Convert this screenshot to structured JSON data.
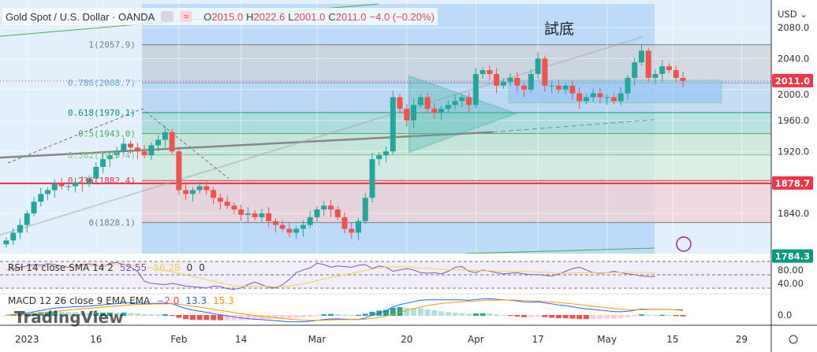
{
  "legend": {
    "symbol": "Gold Spot / U.S. Dollar · OANDA",
    "o_label": "O",
    "o": "2015.0",
    "h_label": "H",
    "h": "2022.6",
    "l_label": "L",
    "l": "2001.0",
    "c_label": "C",
    "c": "2011.0",
    "change": "−4.0 (−0.20%)"
  },
  "annotation": "試底",
  "fib_levels": [
    {
      "label": "1(2057.9)",
      "price": 2057.9,
      "color": "#787b86"
    },
    {
      "label": "0.786(2008.7)",
      "price": 2008.7,
      "color": "#64a6e0"
    },
    {
      "label": "0.618(1970.1)",
      "price": 1970.1,
      "color": "#089981"
    },
    {
      "label": "0.5(1943.0)",
      "price": 1943.0,
      "color": "#4caf50"
    },
    {
      "label": "0.382(1915.4)",
      "price": 1915.4,
      "color": "#81c784"
    },
    {
      "label": "0.236(1882.4)",
      "price": 1882.4,
      "color": "#f23645"
    },
    {
      "label": "0(1828.1)",
      "price": 1828.1,
      "color": "#787b86"
    }
  ],
  "price_axis": {
    "currency": "USD ⌄",
    "ticks": [
      "2080.0",
      "2040.0",
      "2000.0",
      "1960.0",
      "1920.0",
      "1840.0"
    ],
    "tick_values": [
      2080,
      2040,
      2000,
      1960,
      1920,
      1840
    ],
    "tags": [
      {
        "text": "2011.0",
        "price": 2011.0,
        "color": "#f23645"
      },
      {
        "text": "1878.7",
        "price": 1878.7,
        "color": "#f23645"
      },
      {
        "text": "1784.3",
        "price": 1784.3,
        "color": "#089981"
      }
    ]
  },
  "rsi": {
    "label": "RSI 14 close SMA 14 2",
    "value": "52.55",
    "sma": "56.28",
    "x1": "0",
    "x2": "0",
    "axis": [
      "80.00",
      "40.00"
    ],
    "values": [
      62,
      64,
      66,
      68,
      70,
      69,
      71,
      70,
      68,
      66,
      68,
      70,
      71,
      69,
      67,
      72,
      73,
      70,
      66,
      60,
      45,
      42,
      41,
      40,
      42,
      40,
      38,
      37,
      36,
      35,
      38,
      37,
      34,
      33,
      35,
      40,
      44,
      40,
      36,
      35,
      40,
      48,
      58,
      62,
      65,
      72,
      70,
      66,
      68,
      67,
      66,
      69,
      70,
      64,
      68,
      66,
      60,
      62,
      64,
      62,
      58,
      57,
      58,
      56,
      60,
      66,
      67,
      60,
      58,
      62,
      60,
      58,
      56,
      57,
      58,
      56,
      55,
      55,
      54,
      53,
      56,
      60,
      64,
      66,
      62,
      58,
      57,
      58,
      60,
      58,
      56,
      55,
      53,
      52,
      52
    ]
  },
  "macd": {
    "label": "MACD 12 26 close 9 EMA EMA",
    "macd": "−2.0",
    "signal": "13.3",
    "hist": "15.3",
    "axis": [
      "0.0"
    ]
  },
  "time_axis": [
    {
      "t": "2023",
      "i": 3
    },
    {
      "t": "16",
      "i": 13
    },
    {
      "t": "Feb",
      "i": 25
    },
    {
      "t": "14",
      "i": 34
    },
    {
      "t": "Mar",
      "i": 45
    },
    {
      "t": "20",
      "i": 58
    },
    {
      "t": "Apr",
      "i": 68
    },
    {
      "t": "17",
      "i": 77
    },
    {
      "t": "May",
      "i": 87
    },
    {
      "t": "15",
      "i": 96.5
    },
    {
      "t": "29",
      "i": 106.5
    }
  ],
  "branding": "TradingView",
  "chart_data": {
    "type": "candlestick",
    "title": "Gold Spot / U.S. Dollar · OANDA",
    "ylim": [
      1770,
      2095
    ],
    "first_open": 1800,
    "closes": [
      1805,
      1815,
      1825,
      1840,
      1855,
      1865,
      1870,
      1878,
      1875,
      1875,
      1880,
      1878,
      1885,
      1900,
      1910,
      1915,
      1920,
      1930,
      1925,
      1920,
      1915,
      1928,
      1935,
      1945,
      1920,
      1870,
      1865,
      1870,
      1875,
      1870,
      1860,
      1855,
      1850,
      1845,
      1838,
      1840,
      1835,
      1840,
      1830,
      1825,
      1820,
      1815,
      1820,
      1825,
      1835,
      1845,
      1850,
      1845,
      1835,
      1820,
      1815,
      1830,
      1860,
      1910,
      1915,
      1920,
      1990,
      1975,
      1960,
      1980,
      1990,
      1975,
      1970,
      1975,
      1980,
      1985,
      1990,
      1980,
      2020,
      2025,
      2020,
      2005,
      2010,
      2015,
      2005,
      2000,
      2020,
      2040,
      2005,
      2005,
      2000,
      2005,
      1995,
      1985,
      1990,
      1995,
      1990,
      1990,
      1985,
      1995,
      2015,
      2035,
      2050,
      2015,
      2020,
      2030,
      2025,
      2015,
      2011
    ]
  }
}
